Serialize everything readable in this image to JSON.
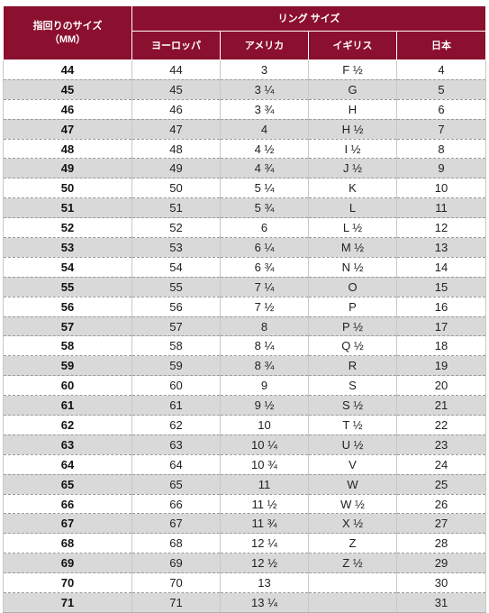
{
  "header": {
    "size_mm_line1": "指回りのサイズ",
    "size_mm_line2": "（MM）",
    "ring_size_group": "リング サイズ",
    "columns": [
      "ヨーロッパ",
      "アメリカ",
      "イギリス",
      "日本"
    ]
  },
  "rows": [
    {
      "mm": "44",
      "eu": "44",
      "us": "3",
      "uk": "F ½",
      "jp": "4"
    },
    {
      "mm": "45",
      "eu": "45",
      "us": "3 ¼",
      "uk": "G",
      "jp": "5"
    },
    {
      "mm": "46",
      "eu": "46",
      "us": "3 ¾",
      "uk": "H",
      "jp": "6"
    },
    {
      "mm": "47",
      "eu": "47",
      "us": "4",
      "uk": "H ½",
      "jp": "7"
    },
    {
      "mm": "48",
      "eu": "48",
      "us": "4 ½",
      "uk": "I ½",
      "jp": "8"
    },
    {
      "mm": "49",
      "eu": "49",
      "us": "4 ¾",
      "uk": "J ½",
      "jp": "9"
    },
    {
      "mm": "50",
      "eu": "50",
      "us": "5 ¼",
      "uk": "K",
      "jp": "10"
    },
    {
      "mm": "51",
      "eu": "51",
      "us": "5 ¾",
      "uk": "L",
      "jp": "11"
    },
    {
      "mm": "52",
      "eu": "52",
      "us": "6",
      "uk": "L ½",
      "jp": "12"
    },
    {
      "mm": "53",
      "eu": "53",
      "us": "6 ¼",
      "uk": "M ½",
      "jp": "13"
    },
    {
      "mm": "54",
      "eu": "54",
      "us": "6 ¾",
      "uk": "N ½",
      "jp": "14"
    },
    {
      "mm": "55",
      "eu": "55",
      "us": "7 ¼",
      "uk": "O",
      "jp": "15"
    },
    {
      "mm": "56",
      "eu": "56",
      "us": "7 ½",
      "uk": "P",
      "jp": "16"
    },
    {
      "mm": "57",
      "eu": "57",
      "us": "8",
      "uk": "P ½",
      "jp": "17"
    },
    {
      "mm": "58",
      "eu": "58",
      "us": "8 ¼",
      "uk": "Q ½",
      "jp": "18"
    },
    {
      "mm": "59",
      "eu": "59",
      "us": "8 ¾",
      "uk": "R",
      "jp": "19"
    },
    {
      "mm": "60",
      "eu": "60",
      "us": "9",
      "uk": "S",
      "jp": "20"
    },
    {
      "mm": "61",
      "eu": "61",
      "us": "9 ½",
      "uk": "S ½",
      "jp": "21"
    },
    {
      "mm": "62",
      "eu": "62",
      "us": "10",
      "uk": "T ½",
      "jp": "22"
    },
    {
      "mm": "63",
      "eu": "63",
      "us": "10 ¼",
      "uk": "U ½",
      "jp": "23"
    },
    {
      "mm": "64",
      "eu": "64",
      "us": "10 ¾",
      "uk": "V",
      "jp": "24"
    },
    {
      "mm": "65",
      "eu": "65",
      "us": "11",
      "uk": "W",
      "jp": "25"
    },
    {
      "mm": "66",
      "eu": "66",
      "us": "11 ½",
      "uk": "W ½",
      "jp": "26"
    },
    {
      "mm": "67",
      "eu": "67",
      "us": "11 ¾",
      "uk": "X ½",
      "jp": "27"
    },
    {
      "mm": "68",
      "eu": "68",
      "us": "12 ¼",
      "uk": "Z",
      "jp": "28"
    },
    {
      "mm": "69",
      "eu": "69",
      "us": "12 ½",
      "uk": "Z ½",
      "jp": "29"
    },
    {
      "mm": "70",
      "eu": "70",
      "us": "13",
      "uk": "",
      "jp": "30"
    },
    {
      "mm": "71",
      "eu": "71",
      "us": "13 ¼",
      "uk": "",
      "jp": "31"
    }
  ],
  "colors": {
    "header_bg": "#8b0f2e",
    "header_text": "#ffffff",
    "stripe_bg": "#d9d9d9"
  }
}
